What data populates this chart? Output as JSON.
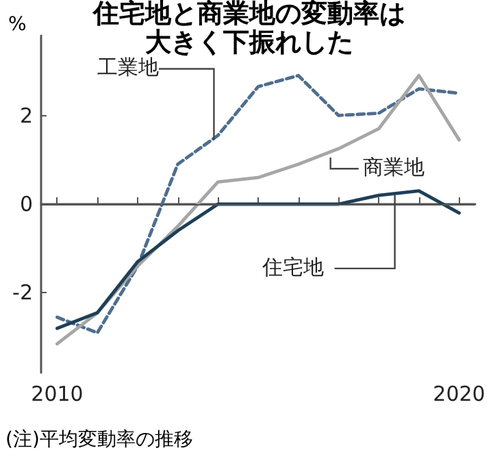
{
  "chart_data": {
    "type": "line",
    "title": "住宅地と商業地の変動率は大きく下振れした",
    "ylabel": "%",
    "annotations": [
      "(注)平均変動率の推移"
    ],
    "x": [
      2010,
      2011,
      2012,
      2013,
      2014,
      2015,
      2016,
      2017,
      2018,
      2019,
      2020
    ],
    "xlim": [
      2009.6,
      2020.4
    ],
    "xticks": [
      2010,
      {
        "value": 2011,
        "label": null
      },
      {
        "value": 2012,
        "label": null
      },
      {
        "value": 2013,
        "label": null
      },
      {
        "value": 2014,
        "label": null
      },
      {
        "value": 2015,
        "label": null
      },
      {
        "value": 2016,
        "label": null
      },
      {
        "value": 2017,
        "label": null
      },
      {
        "value": 2018,
        "label": null
      },
      {
        "value": 2019,
        "label": null
      },
      2020
    ],
    "ylim": [
      -3.8,
      3.8
    ],
    "yticks": [
      -2,
      0,
      2
    ],
    "series": [
      {
        "name": "工業地",
        "color": "#4f6e8e",
        "line_style": "dashed",
        "values": [
          -2.55,
          -2.9,
          -1.4,
          0.9,
          1.55,
          2.65,
          2.9,
          2.0,
          2.05,
          2.6,
          2.5
        ]
      },
      {
        "name": "商業地",
        "color": "#a6a6a6",
        "line_style": "solid",
        "values": [
          -3.15,
          -2.45,
          -1.4,
          -0.5,
          0.5,
          0.6,
          0.9,
          1.25,
          1.7,
          2.9,
          1.45
        ]
      },
      {
        "name": "住宅地",
        "color": "#1e3f58",
        "line_style": "solid",
        "values": [
          -2.8,
          -2.45,
          -1.3,
          -0.6,
          0,
          0,
          0,
          0,
          0.2,
          0.3,
          -0.2
        ]
      }
    ],
    "ref_lines": [
      {
        "axis": "y",
        "value": 0,
        "color": "#555555"
      }
    ],
    "marker": "none",
    "legend": false,
    "grid": false
  }
}
